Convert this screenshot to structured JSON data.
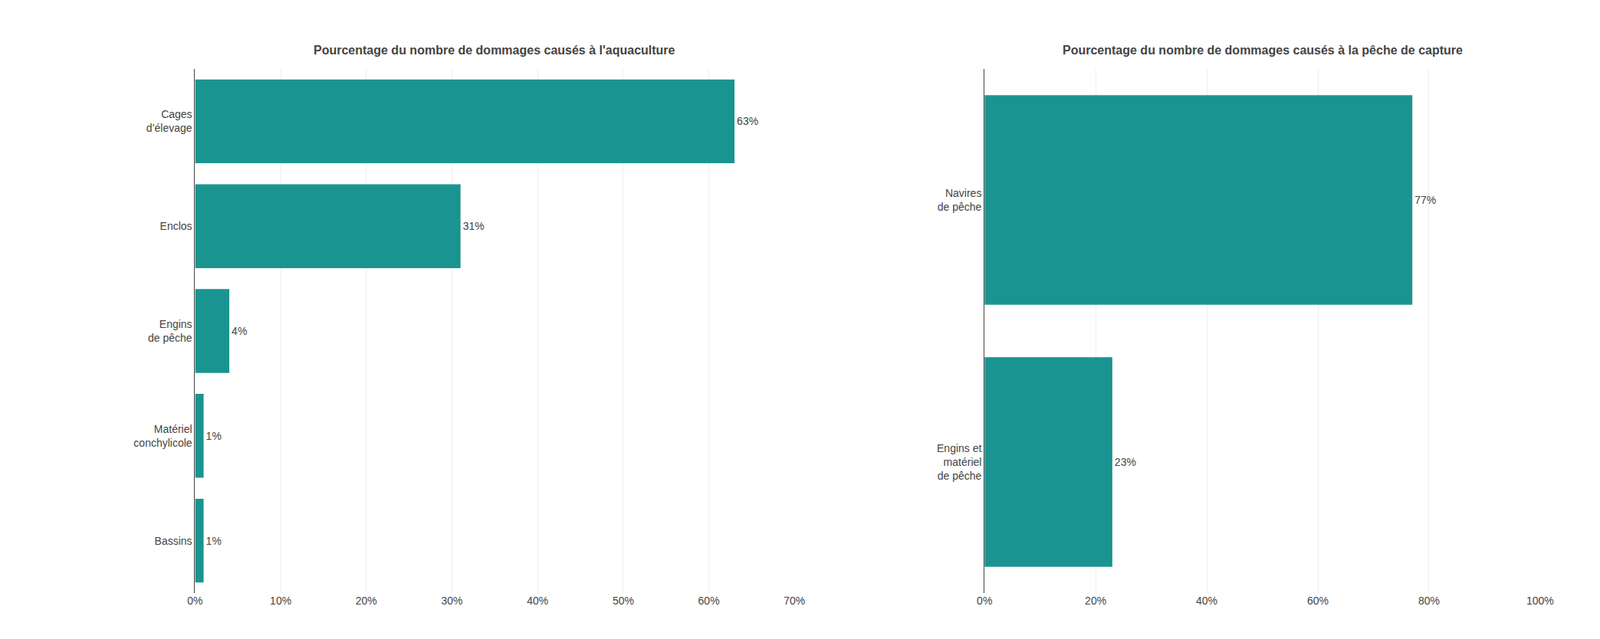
{
  "chart_data": [
    {
      "type": "bar",
      "orientation": "horizontal",
      "title": "Pourcentage du nombre de dommages causés à l'aquaculture",
      "categories": [
        "Cages\nd’élevage",
        "Enclos",
        "Engins\nde pêche",
        "Matériel\nconchylicole",
        "Bassins"
      ],
      "values": [
        63,
        31,
        4,
        1,
        1
      ],
      "value_labels": [
        "63%",
        "31%",
        "4%",
        "1%",
        "1%"
      ],
      "data_labels": true,
      "color": "#1a9490",
      "xlim": [
        0,
        70
      ],
      "xticks": [
        {
          "value": 0,
          "label": "0%"
        },
        {
          "value": 10,
          "label": "10%"
        },
        {
          "value": 20,
          "label": "20%"
        },
        {
          "value": 30,
          "label": "30%"
        },
        {
          "value": 40,
          "label": "40%"
        },
        {
          "value": 50,
          "label": "50%"
        },
        {
          "value": 60,
          "label": "60%"
        },
        {
          "value": 70,
          "label": "70%"
        }
      ],
      "grid": true
    },
    {
      "type": "bar",
      "orientation": "horizontal",
      "title": "Pourcentage du nombre de dommages causés à la pêche de capture",
      "categories": [
        "Navires\nde pêche",
        "Engins et\nmatériel\nde pêche"
      ],
      "values": [
        77,
        23
      ],
      "value_labels": [
        "77%",
        "23%"
      ],
      "data_labels": true,
      "color": "#1a9490",
      "xlim": [
        0,
        100
      ],
      "xticks": [
        {
          "value": 0,
          "label": "0%"
        },
        {
          "value": 20,
          "label": "20%"
        },
        {
          "value": 40,
          "label": "40%"
        },
        {
          "value": 60,
          "label": "60%"
        },
        {
          "value": 80,
          "label": "80%"
        },
        {
          "value": 100,
          "label": "100%"
        }
      ],
      "grid": true
    }
  ]
}
